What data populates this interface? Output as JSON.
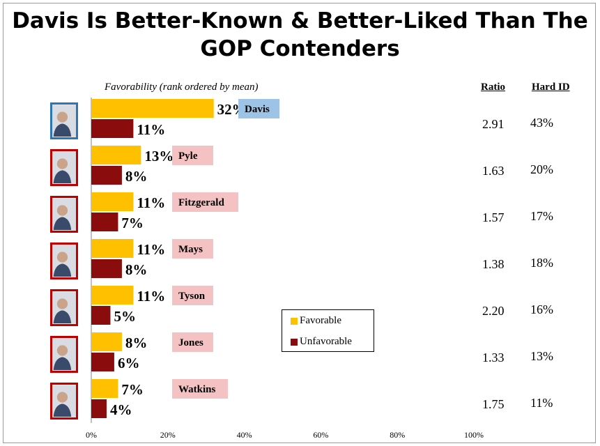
{
  "title": "Davis Is Better-Known & Better-Liked Than The GOP Contenders",
  "subtitle": "Favorability (rank ordered by mean)",
  "columns": {
    "ratio": "Ratio",
    "hard_id": "Hard ID"
  },
  "colors": {
    "favorable": "#ffc000",
    "unfavorable": "#8b0c0c",
    "dem_label": "#9dc3e6",
    "gop_label": "#f4c2c2",
    "dem_border": "#2e75b6",
    "gop_border": "#c00000"
  },
  "candidates": [
    {
      "name": "Davis",
      "party": "dem",
      "photo_icon": "candidate-photo-icon",
      "favorable_label": "32%",
      "unfavorable_label": "11%",
      "ratio": "2.91",
      "hard_id": "43%"
    },
    {
      "name": "Pyle",
      "party": "gop",
      "photo_icon": "candidate-photo-icon",
      "favorable_label": "13%",
      "unfavorable_label": "8%",
      "ratio": "1.63",
      "hard_id": "20%"
    },
    {
      "name": "Fitzgerald",
      "party": "gop",
      "photo_icon": "candidate-photo-icon",
      "favorable_label": "11%",
      "unfavorable_label": "7%",
      "ratio": "1.57",
      "hard_id": "17%"
    },
    {
      "name": "Mays",
      "party": "gop",
      "photo_icon": "candidate-photo-icon",
      "favorable_label": "11%",
      "unfavorable_label": "8%",
      "ratio": "1.38",
      "hard_id": "18%"
    },
    {
      "name": "Tyson",
      "party": "gop",
      "photo_icon": "candidate-photo-icon",
      "favorable_label": "11%",
      "unfavorable_label": "5%",
      "ratio": "2.20",
      "hard_id": "16%"
    },
    {
      "name": "Jones",
      "party": "gop",
      "photo_icon": "candidate-photo-icon",
      "favorable_label": "8%",
      "unfavorable_label": "6%",
      "ratio": "1.33",
      "hard_id": "13%"
    },
    {
      "name": "Watkins",
      "party": "gop",
      "photo_icon": "candidate-photo-icon",
      "favorable_label": "7%",
      "unfavorable_label": "4%",
      "ratio": "1.75",
      "hard_id": "11%"
    }
  ],
  "legend": {
    "favorable": "Favorable",
    "unfavorable": "Unfavorable"
  },
  "chart_data": {
    "type": "bar",
    "orientation": "horizontal",
    "categories": [
      "Davis",
      "Pyle",
      "Fitzgerald",
      "Mays",
      "Tyson",
      "Jones",
      "Watkins"
    ],
    "series": [
      {
        "name": "Favorable",
        "values": [
          32,
          13,
          11,
          11,
          11,
          8,
          7
        ]
      },
      {
        "name": "Unfavorable",
        "values": [
          11,
          8,
          7,
          8,
          5,
          6,
          4
        ]
      }
    ],
    "xlim": [
      0,
      100
    ],
    "x_ticks": [
      "0%",
      "20%",
      "40%",
      "60%",
      "80%",
      "100%"
    ],
    "grid": false,
    "legend_position": "center-right"
  }
}
